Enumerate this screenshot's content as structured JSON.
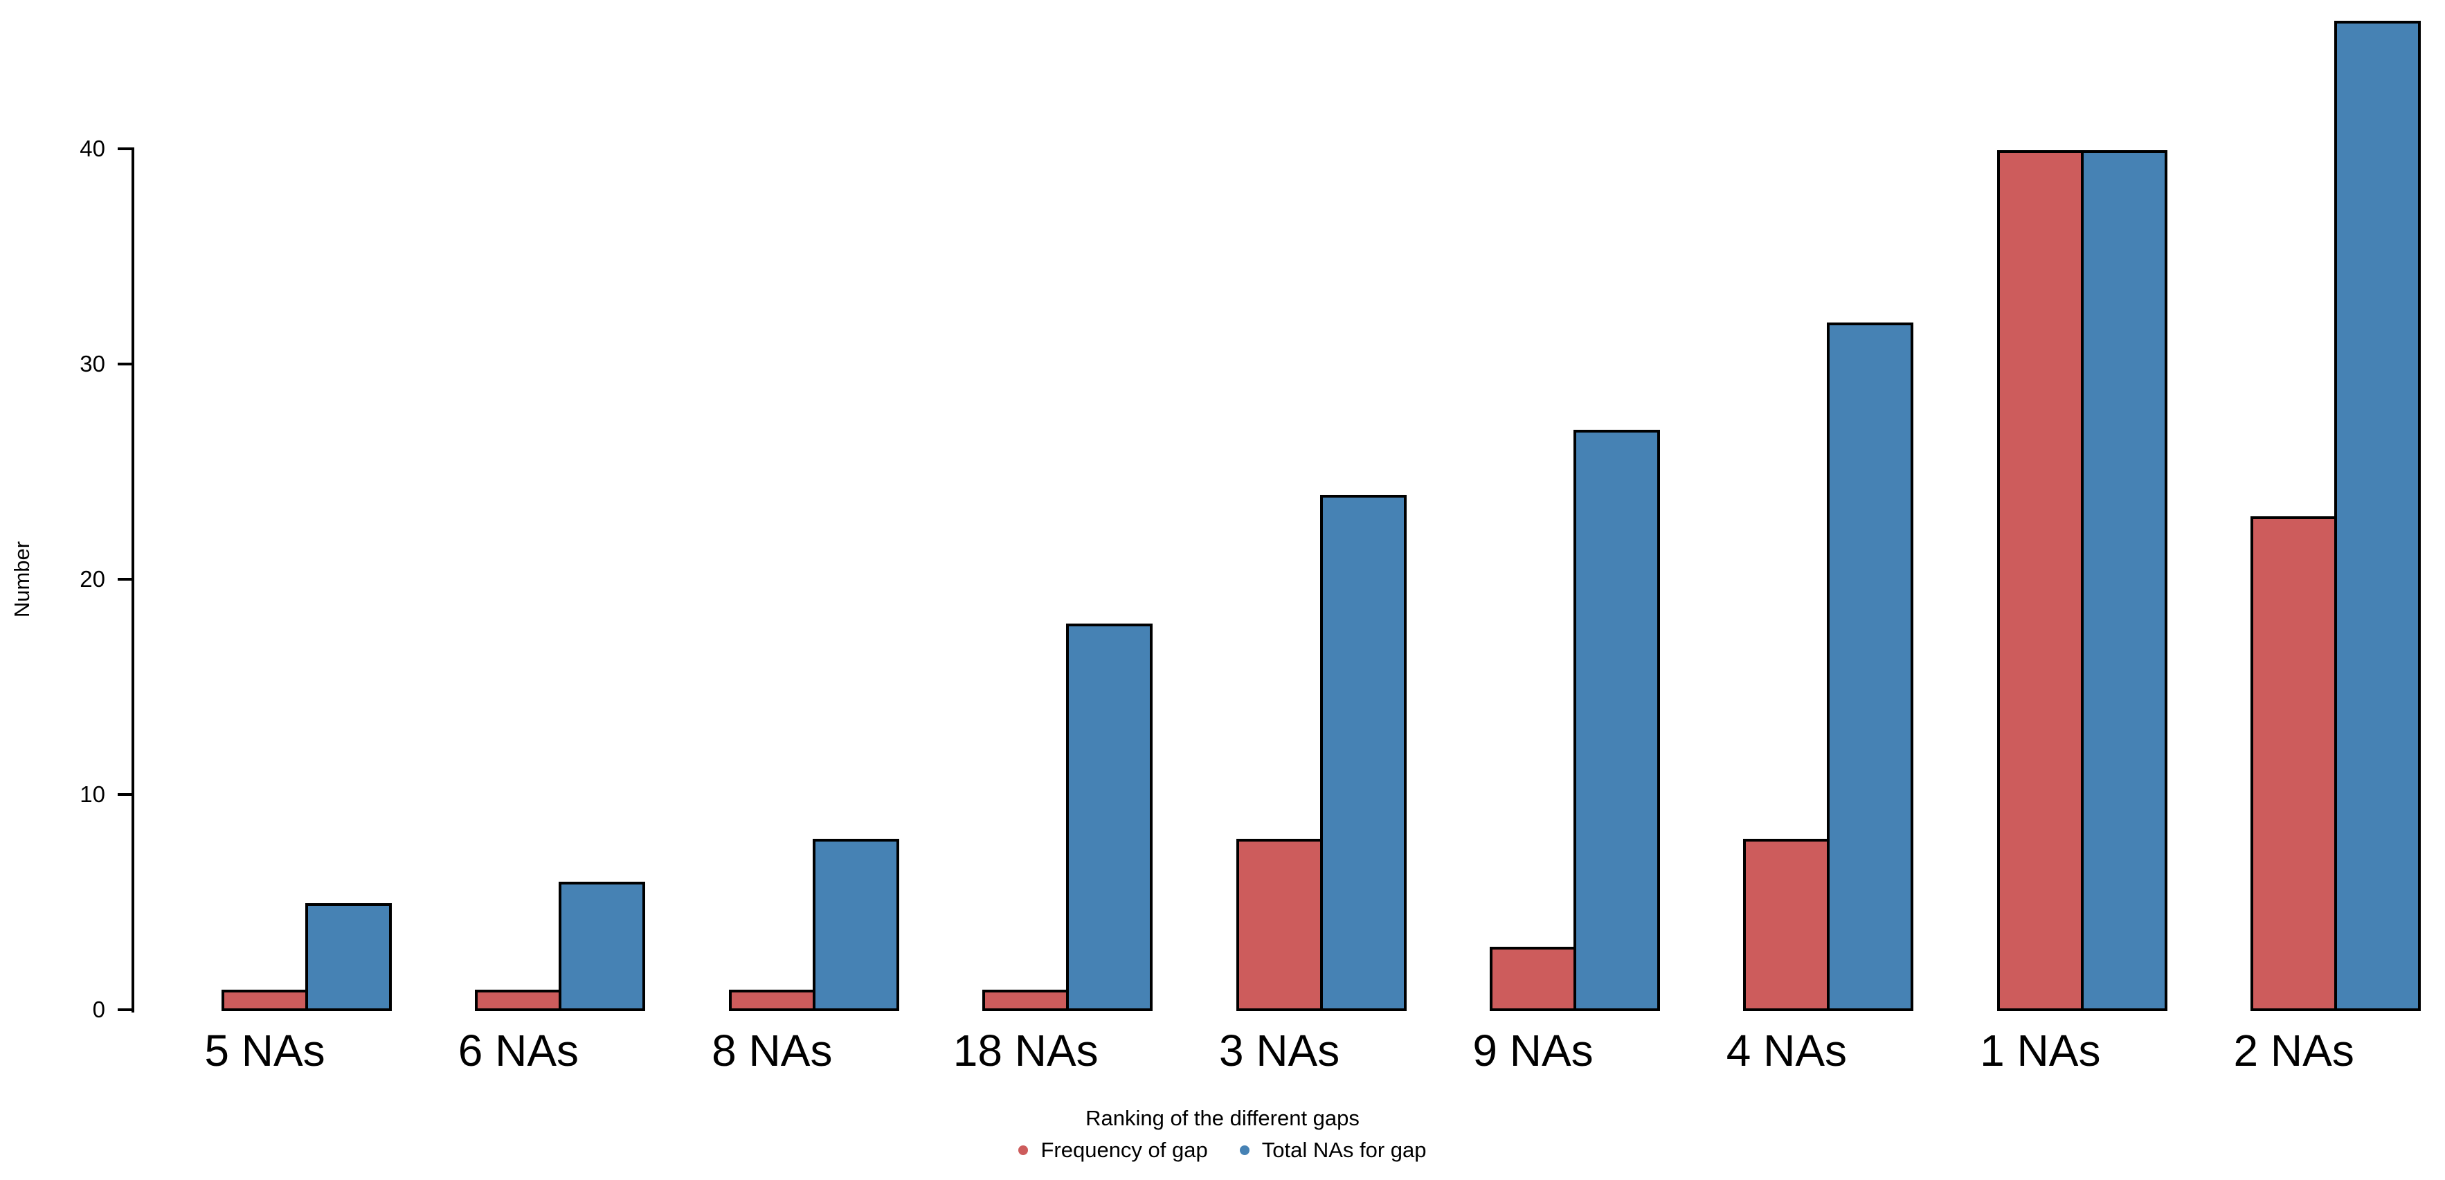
{
  "chart_data": {
    "type": "bar",
    "title": "",
    "xlabel": "Ranking of the different gaps",
    "ylabel": "Number",
    "categories": [
      "5 NAs",
      "6 NAs",
      "8 NAs",
      "18 NAs",
      "3 NAs",
      "9 NAs",
      "4 NAs",
      "1 NAs",
      "2 NAs"
    ],
    "series": [
      {
        "name": "Frequency of gap",
        "color": "#CD5C5C",
        "values": [
          1,
          1,
          1,
          1,
          8,
          3,
          8,
          40,
          23
        ]
      },
      {
        "name": "Total NAs for gap",
        "color": "#4682B4",
        "values": [
          5,
          6,
          8,
          18,
          24,
          27,
          32,
          40,
          46
        ]
      }
    ],
    "yticks": [
      0,
      10,
      20,
      30,
      40
    ],
    "ylim": [
      0,
      46
    ],
    "grid": false,
    "legend_position": "bottom-center",
    "bar_border_color": "#000000"
  }
}
